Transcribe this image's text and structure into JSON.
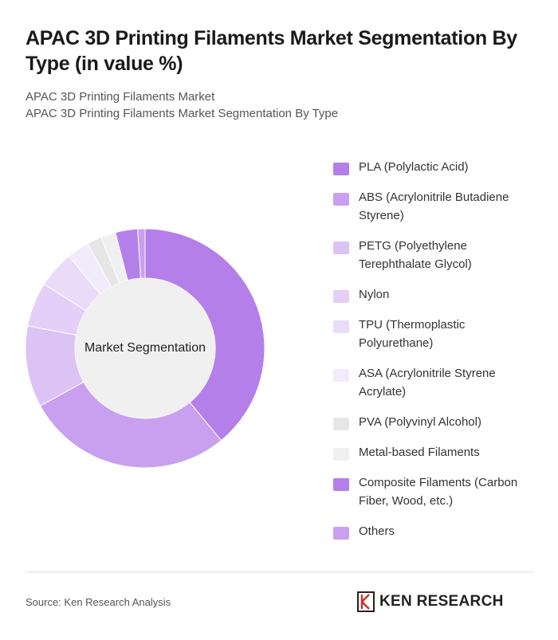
{
  "chart_data": {
    "type": "donut",
    "title": "APAC 3D Printing Filaments Market Segmentation By Type (in value %)",
    "subtitles": [
      "APAC 3D Printing Filaments Market",
      "APAC 3D Printing Filaments Market Segmentation By Type"
    ],
    "center_label": "Market Segmentation",
    "categories": [
      "PLA (Polylactic Acid)",
      "ABS (Acrylonitrile Butadiene Styrene)",
      "PETG (Polyethylene Terephthalate Glycol)",
      "Nylon",
      "TPU (Thermoplastic Polyurethane)",
      "ASA (Acrylonitrile Styrene Acrylate)",
      "PVA (Polyvinyl Alcohol)",
      "Metal-based Filaments",
      "Composite Filaments (Carbon Fiber, Wood, etc.)",
      "Others"
    ],
    "values": [
      39,
      28,
      11,
      6,
      5,
      3,
      2,
      2,
      3,
      1
    ],
    "colors": [
      "#b57fea",
      "#c9a0f0",
      "#dcc3f5",
      "#e3cff7",
      "#eadcf9",
      "#f1ebfb",
      "#e6e6e6",
      "#f0f0f0",
      "#b57fea",
      "#c9a0f0"
    ],
    "source": "Source: Ken Research Analysis",
    "logo": "KEN RESEARCH"
  }
}
